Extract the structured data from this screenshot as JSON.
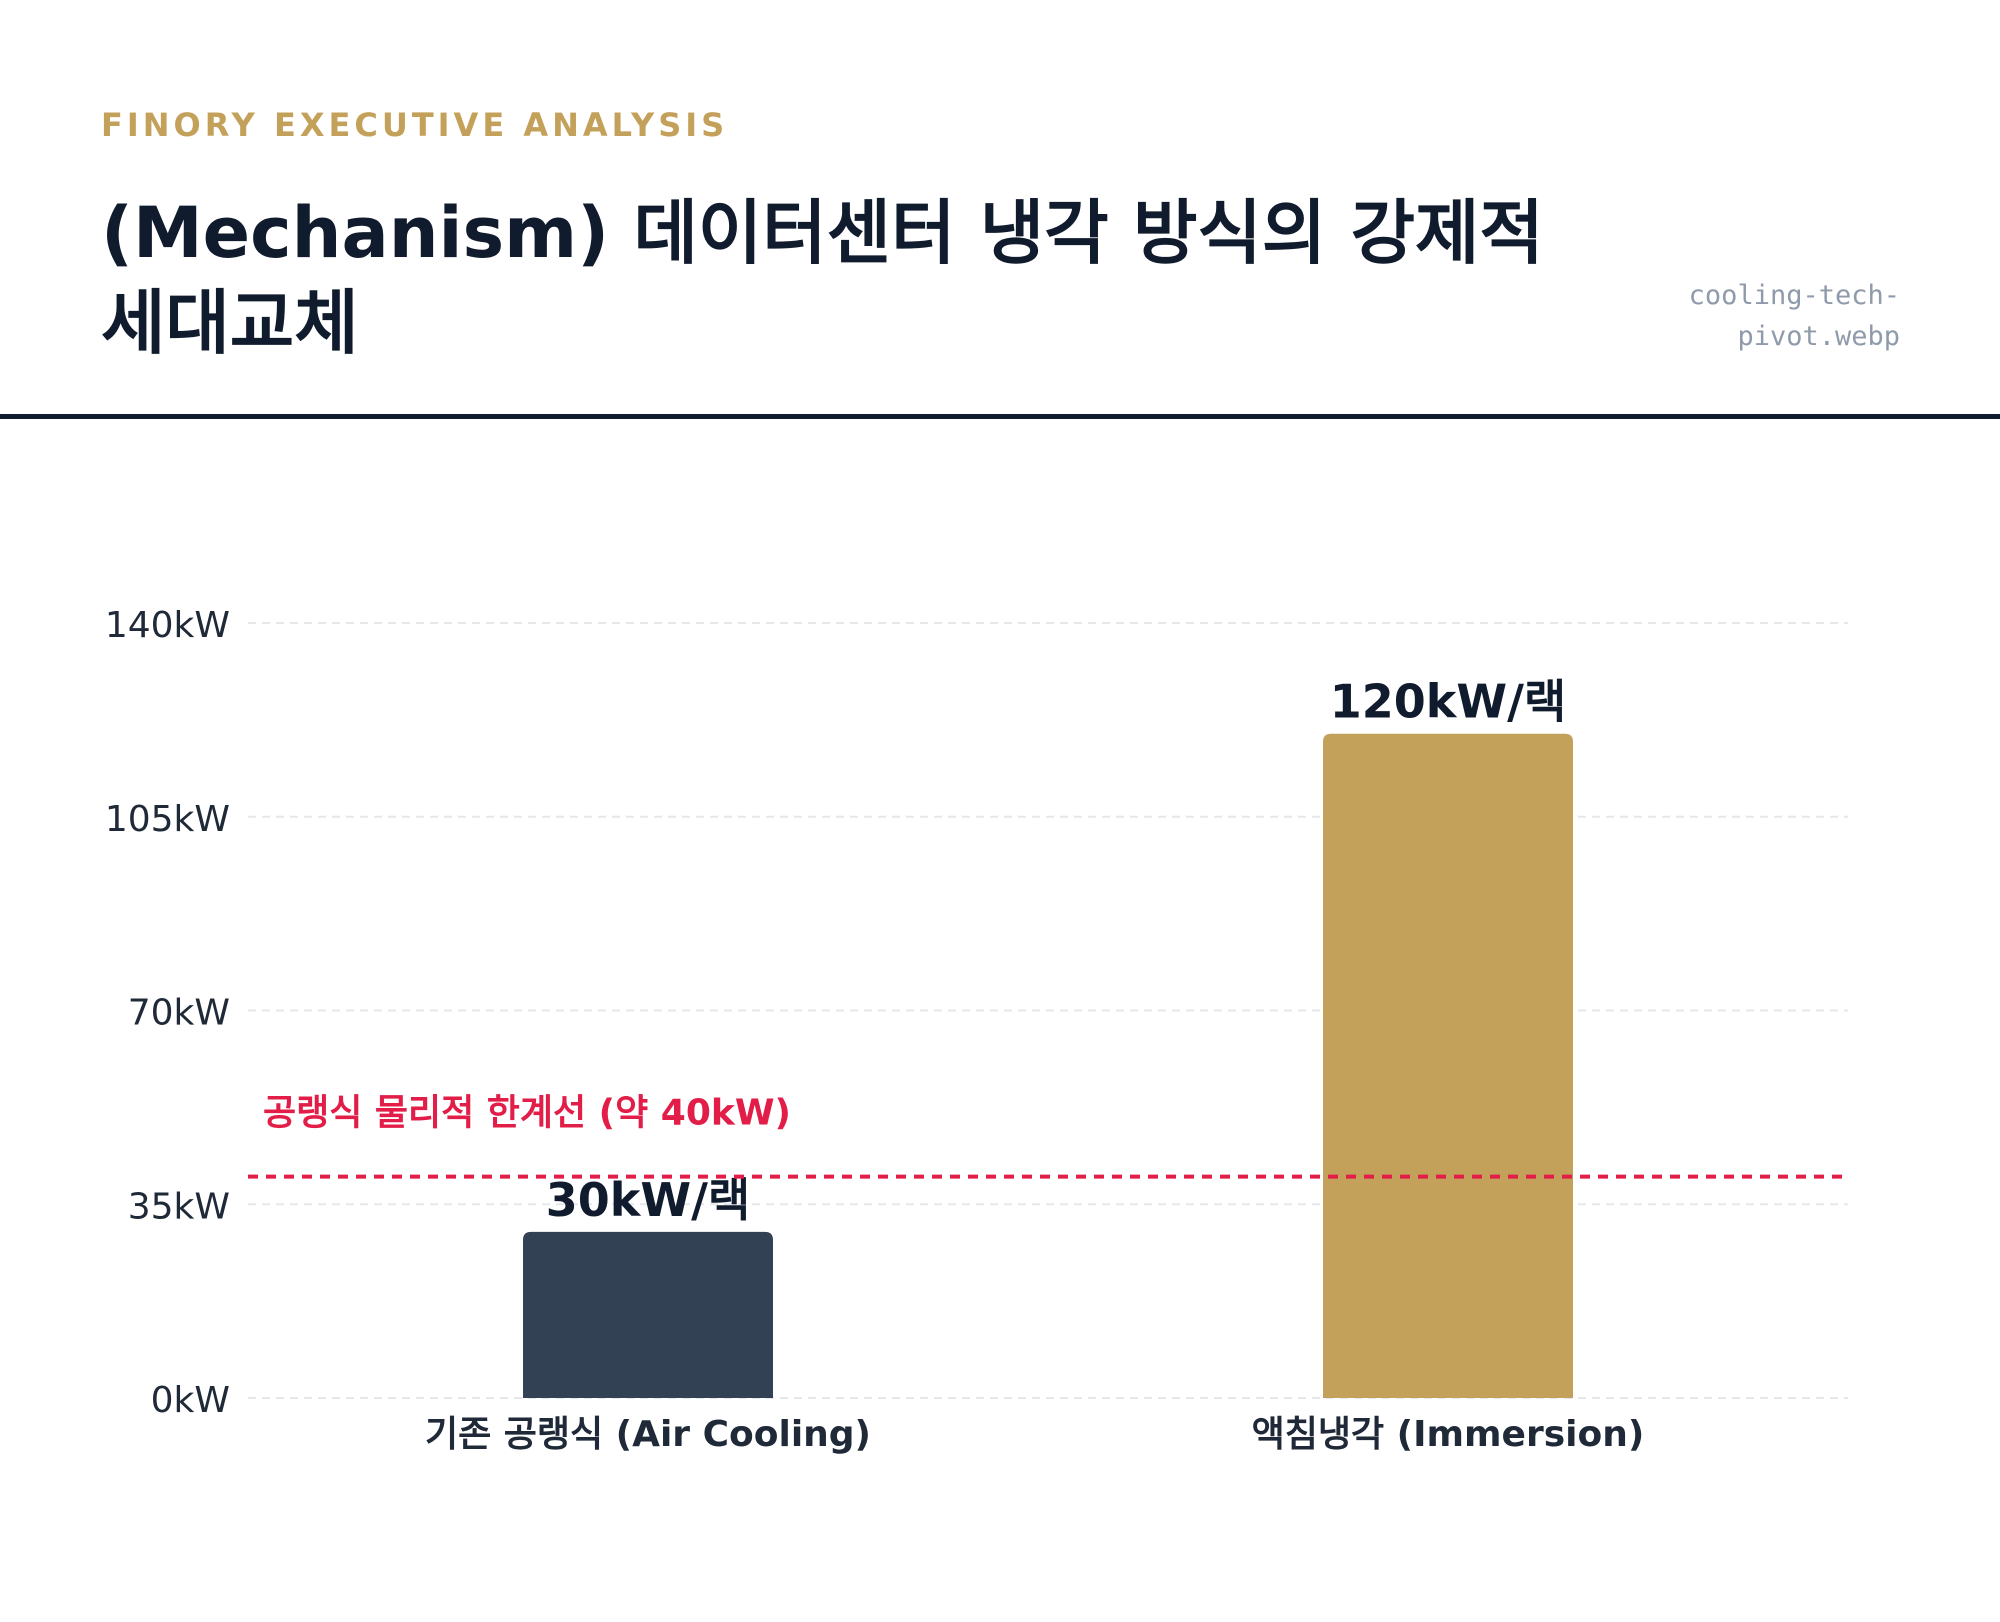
{
  "header": {
    "kicker": "FINORY EXECUTIVE ANALYSIS",
    "title": "(Mechanism) 데이터센터 냉각 방식의 강제적 세대교체",
    "filename": "cooling-tech-pivot.webp"
  },
  "colors": {
    "navy": "#101b2d",
    "bar_air": "#334155",
    "bar_immersion": "#c4a15a",
    "threshold": "#e11d48",
    "grid": "#e5e7eb",
    "tick_text": "#1f2937"
  },
  "chart_data": {
    "type": "bar",
    "categories": [
      "기존 공랭식 (Air Cooling)",
      "액침냉각 (Immersion)"
    ],
    "values": [
      30,
      120
    ],
    "value_labels": [
      "30kW/랙",
      "120kW/랙"
    ],
    "unit": "kW",
    "ylim": [
      0,
      140
    ],
    "yticks": [
      0,
      35,
      70,
      105,
      140
    ],
    "ytick_labels": [
      "0kW",
      "35kW",
      "70kW",
      "105kW",
      "140kW"
    ],
    "grid": true,
    "threshold": {
      "value": 40,
      "label": "공랭식 물리적 한계선 (약 40kW)"
    }
  }
}
